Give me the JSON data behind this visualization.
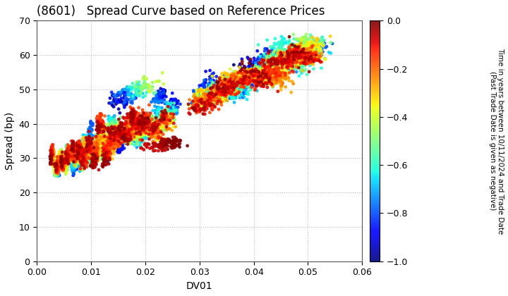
{
  "title": "(8601)   Spread Curve based on Reference Prices",
  "xlabel": "DV01",
  "ylabel": "Spread (bp)",
  "xlim": [
    0.0,
    0.06
  ],
  "ylim": [
    0,
    70
  ],
  "xticks": [
    0.0,
    0.01,
    0.02,
    0.03,
    0.04,
    0.05,
    0.06
  ],
  "yticks": [
    0,
    10,
    20,
    30,
    40,
    50,
    60,
    70
  ],
  "colorbar_ticks": [
    0.0,
    -0.2,
    -0.4,
    -0.6,
    -0.8,
    -1.0
  ],
  "vmin": -1.0,
  "vmax": 0.0,
  "background_color": "#ffffff",
  "grid_color": "#bbbbbb",
  "title_fontsize": 12,
  "axis_label_fontsize": 10,
  "tick_fontsize": 9,
  "colorbar_label": "Time in years between 10/11/2024 and Trade Date\n(Past Trade Date is given as negative)"
}
